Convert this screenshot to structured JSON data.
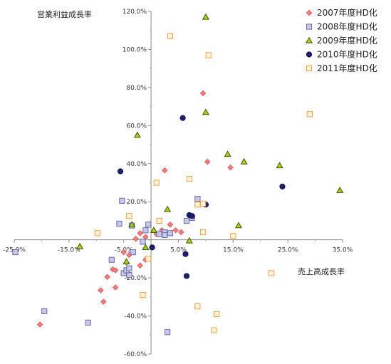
{
  "chart_data": {
    "type": "scatter",
    "xlabel": "売上高成長率",
    "ylabel": "営業利益成長率",
    "xlim": [
      -25,
      35
    ],
    "ylim": [
      -60,
      120
    ],
    "x_ticks": [
      -25,
      -15,
      -5,
      5,
      15,
      25,
      35
    ],
    "y_ticks": [
      120,
      100,
      80,
      60,
      40,
      20,
      0,
      -20,
      -40,
      -60
    ],
    "x_tick_labels": [
      "-25.0%",
      "-15.0%",
      "-5.0%",
      "5.0%",
      "15.0%",
      "25.0%",
      "35.0%"
    ],
    "y_tick_labels": [
      "120.0%",
      "100.0%",
      "80.0%",
      "60.0%",
      "40.0%",
      "20.0%",
      "",
      "-20.0%",
      "-40.0%",
      "-60.0%"
    ],
    "grid": false,
    "legend_position": "top-right",
    "series": [
      {
        "name": "2007年度HD化",
        "marker": "diamond",
        "color": "#f08080",
        "stroke": "#e06060",
        "points": [
          [
            -20.3,
            -44.5
          ],
          [
            -8.7,
            -32.5
          ],
          [
            -9.2,
            -26.5
          ],
          [
            -6.5,
            -25.0
          ],
          [
            -8.0,
            -19.5
          ],
          [
            -7.0,
            -15.5
          ],
          [
            -6.5,
            -16.0
          ],
          [
            -4.5,
            -12.0
          ],
          [
            -5.0,
            -6.5
          ],
          [
            -4.0,
            -8.0
          ],
          [
            -2.0,
            -13.5
          ],
          [
            -1.0,
            -10.5
          ],
          [
            -2.8,
            0.5
          ],
          [
            -2.0,
            3.5
          ],
          [
            -1.0,
            1.5
          ],
          [
            1.0,
            3.0
          ],
          [
            2.0,
            5.0
          ],
          [
            3.5,
            8.0
          ],
          [
            4.5,
            5.0
          ],
          [
            5.5,
            4.0
          ],
          [
            2.5,
            36.5
          ],
          [
            10.3,
            41.0
          ],
          [
            9.5,
            77.0
          ],
          [
            14.5,
            38.0
          ]
        ]
      },
      {
        "name": "2008年度HD化",
        "marker": "square",
        "color": "#c8c8ec",
        "stroke": "#6a6aa0",
        "points": [
          [
            -24.8,
            -6.5
          ],
          [
            -19.5,
            -37.5
          ],
          [
            -11.5,
            -43.5
          ],
          [
            -7.2,
            -10.5
          ],
          [
            -5.0,
            -17.5
          ],
          [
            -4.0,
            -18.5
          ],
          [
            -4.5,
            -16.0
          ],
          [
            -4.0,
            -15.0
          ],
          [
            -3.3,
            -6.5
          ],
          [
            -1.5,
            -1.0
          ],
          [
            -5.8,
            8.5
          ],
          [
            -5.3,
            20.5
          ],
          [
            -3.5,
            7.5
          ],
          [
            -1.0,
            5.0
          ],
          [
            -0.5,
            8.0
          ],
          [
            1.5,
            3.0
          ],
          [
            2.5,
            4.0
          ],
          [
            2.5,
            2.5
          ],
          [
            3.5,
            3.5
          ],
          [
            6.5,
            10.0
          ],
          [
            7.5,
            11.5
          ],
          [
            8.5,
            21.5
          ],
          [
            3.0,
            -48.5
          ]
        ]
      },
      {
        "name": "2009年度HD化",
        "marker": "triangle",
        "color": "#a8d020",
        "stroke": "#3a5a00",
        "points": [
          [
            -13.0,
            -3.5
          ],
          [
            -4.5,
            -11.5
          ],
          [
            -1.0,
            -4.0
          ],
          [
            0.5,
            5.0
          ],
          [
            -3.5,
            8.0
          ],
          [
            -2.5,
            55.0
          ],
          [
            3.0,
            16.0
          ],
          [
            7.0,
            -0.5
          ],
          [
            10.0,
            67.0
          ],
          [
            10.0,
            117.0
          ],
          [
            14.0,
            45.0
          ],
          [
            16.0,
            7.5
          ],
          [
            17.0,
            41.0
          ],
          [
            23.5,
            39.0
          ],
          [
            34.5,
            26.0
          ]
        ]
      },
      {
        "name": "2010年度HD化",
        "marker": "circle",
        "color": "#202070",
        "stroke": "#101050",
        "points": [
          [
            -5.6,
            36.0
          ],
          [
            0.2,
            -4.0
          ],
          [
            5.8,
            64.0
          ],
          [
            6.3,
            -7.5
          ],
          [
            6.5,
            -19.0
          ],
          [
            7.0,
            13.0
          ],
          [
            7.5,
            12.5
          ],
          [
            10.0,
            18.5
          ],
          [
            24.0,
            28.0
          ]
        ]
      },
      {
        "name": "2011年度HD化",
        "marker": "square",
        "color": "#fff4e0",
        "stroke": "#f0a040",
        "points": [
          [
            -9.8,
            3.5
          ],
          [
            -4.0,
            12.5
          ],
          [
            -1.5,
            -29.0
          ],
          [
            -0.5,
            -10.0
          ],
          [
            1.0,
            30.0
          ],
          [
            1.5,
            10.0
          ],
          [
            3.5,
            107.0
          ],
          [
            7.0,
            32.0
          ],
          [
            8.5,
            18.5
          ],
          [
            9.5,
            4.0
          ],
          [
            10.5,
            97.0
          ],
          [
            9.5,
            19.0
          ],
          [
            15.0,
            2.0
          ],
          [
            8.5,
            -35.0
          ],
          [
            12.0,
            -39.0
          ],
          [
            11.5,
            -47.5
          ],
          [
            22.0,
            -17.5
          ],
          [
            29.0,
            66.0
          ]
        ]
      }
    ]
  }
}
